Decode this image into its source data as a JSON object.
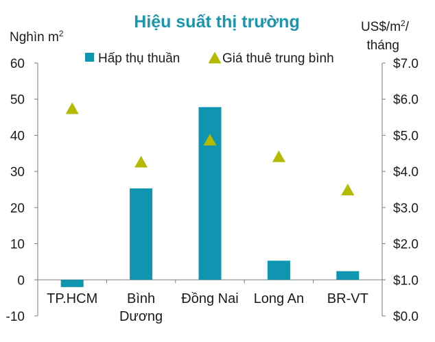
{
  "chart_data": {
    "type": "bar",
    "title": "Hiệu suất thị trường",
    "ylabel_left": "Nghìn m",
    "ylabel_left_sup": "2",
    "ylabel_right_line1_a": "US$/m",
    "ylabel_right_line1_sup": "2",
    "ylabel_right_line1_b": "/",
    "ylabel_right_line2": "tháng",
    "categories": [
      [
        "TP.HCM"
      ],
      [
        "Bình",
        "Dương"
      ],
      [
        "Đồng Nai"
      ],
      [
        "Long An"
      ],
      [
        "BR-VT"
      ]
    ],
    "ylim_left": [
      -10,
      60
    ],
    "ylim_right": [
      0,
      7
    ],
    "left_ticks": [
      "-10",
      "0",
      "10",
      "20",
      "30",
      "40",
      "50",
      "60"
    ],
    "right_ticks": [
      "$0.0",
      "$1.0",
      "$2.0",
      "$3.0",
      "$4.0",
      "$5.0",
      "$6.0",
      "$7.0"
    ],
    "series": [
      {
        "name": "Hấp thụ thuần",
        "type": "bar",
        "axis": "left",
        "color": "#0f95b0",
        "values": [
          -2,
          25.3,
          47.8,
          5.3,
          2.4
        ]
      },
      {
        "name": "Giá thuê trung bình",
        "type": "marker-triangle",
        "axis": "right",
        "color": "#b4ba00",
        "values": [
          5.75,
          4.27,
          4.88,
          4.42,
          3.5
        ]
      }
    ],
    "legend_position": "top",
    "grid": false
  }
}
